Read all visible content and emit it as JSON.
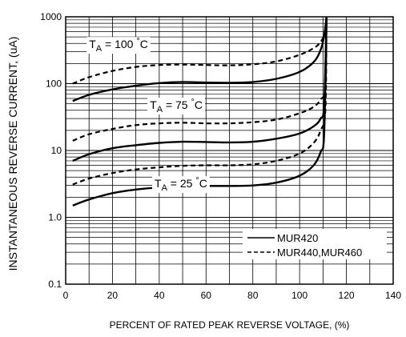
{
  "chart_data": {
    "type": "line",
    "title": "",
    "xlabel": "PERCENT OF RATED PEAK REVERSE VOLTAGE, (%)",
    "ylabel": "INSTANTANEOUS REVERSE CURRENT, (uA)",
    "xlim": [
      0,
      140
    ],
    "ylim": [
      0.1,
      1000
    ],
    "y_scale": "log",
    "grid": true,
    "x_ticks": [
      "0",
      "20",
      "40",
      "60",
      "80",
      "100",
      "120",
      "140"
    ],
    "y_ticks": [
      "0.1",
      "1.0",
      "10",
      "100",
      "1000"
    ],
    "legend_position": "bottom-right",
    "legend": [
      {
        "label": "MUR420",
        "style": "solid"
      },
      {
        "label": "MUR440,MUR460",
        "style": "dashed"
      }
    ],
    "annotations": [
      {
        "text": "T",
        "sub": "A",
        "rest": " = 100 ",
        "unit": "°C",
        "x": 10,
        "y": 340
      },
      {
        "text": "T",
        "sub": "A",
        "rest": " = 75 ",
        "unit": "°C",
        "x": 36,
        "y": 42
      },
      {
        "text": "T",
        "sub": "A",
        "rest": " = 25 ",
        "unit": "°C",
        "x": 38,
        "y": 2.8
      }
    ],
    "series": [
      {
        "name": "MUR420",
        "temperature": "100 °C",
        "style": "solid",
        "x": [
          3,
          10,
          20,
          30,
          40,
          50,
          60,
          70,
          80,
          90,
          100,
          106,
          109,
          110.5,
          111.5
        ],
        "y": [
          55,
          68,
          82,
          93,
          102,
          106,
          104,
          103,
          106,
          118,
          150,
          210,
          320,
          520,
          1000
        ]
      },
      {
        "name": "MUR440,MUR460",
        "temperature": "100 °C",
        "style": "dashed",
        "x": [
          3,
          10,
          20,
          30,
          40,
          50,
          60,
          70,
          80,
          90,
          100,
          106,
          109,
          111,
          111.5
        ],
        "y": [
          100,
          125,
          155,
          178,
          190,
          193,
          190,
          188,
          195,
          215,
          270,
          340,
          420,
          600,
          1000
        ]
      },
      {
        "name": "MUR420",
        "temperature": "75 °C",
        "style": "solid",
        "x": [
          3,
          10,
          20,
          30,
          40,
          50,
          60,
          70,
          80,
          90,
          100,
          106,
          109,
          110.5,
          111.5
        ],
        "y": [
          7,
          8.8,
          10.8,
          12,
          13,
          13.5,
          13.4,
          13.2,
          13.5,
          15,
          18,
          23,
          30,
          48,
          1000
        ]
      },
      {
        "name": "MUR440,MUR460",
        "temperature": "75 °C",
        "style": "dashed",
        "x": [
          3,
          10,
          20,
          30,
          40,
          50,
          60,
          70,
          80,
          90,
          100,
          106,
          109,
          111,
          111.5
        ],
        "y": [
          14,
          17.5,
          21,
          24,
          25.5,
          26,
          25.5,
          25.5,
          26.5,
          29,
          36,
          45,
          58,
          90,
          1000
        ]
      },
      {
        "name": "MUR420",
        "temperature": "25 °C",
        "style": "solid",
        "x": [
          3,
          10,
          20,
          30,
          40,
          50,
          60,
          70,
          80,
          90,
          100,
          106,
          109,
          110.5,
          111.5
        ],
        "y": [
          1.5,
          1.85,
          2.3,
          2.6,
          2.8,
          2.9,
          2.95,
          2.95,
          3.0,
          3.3,
          4.2,
          6,
          9.5,
          18,
          1000
        ]
      },
      {
        "name": "MUR440,MUR460",
        "temperature": "25 °C",
        "style": "dashed",
        "x": [
          3,
          10,
          20,
          30,
          40,
          50,
          60,
          70,
          80,
          90,
          100,
          106,
          109,
          111,
          111.5
        ],
        "y": [
          3.1,
          3.8,
          4.6,
          5.2,
          5.6,
          5.9,
          6.0,
          6.0,
          6.2,
          7.0,
          9.0,
          13,
          20,
          40,
          1000
        ]
      }
    ]
  }
}
